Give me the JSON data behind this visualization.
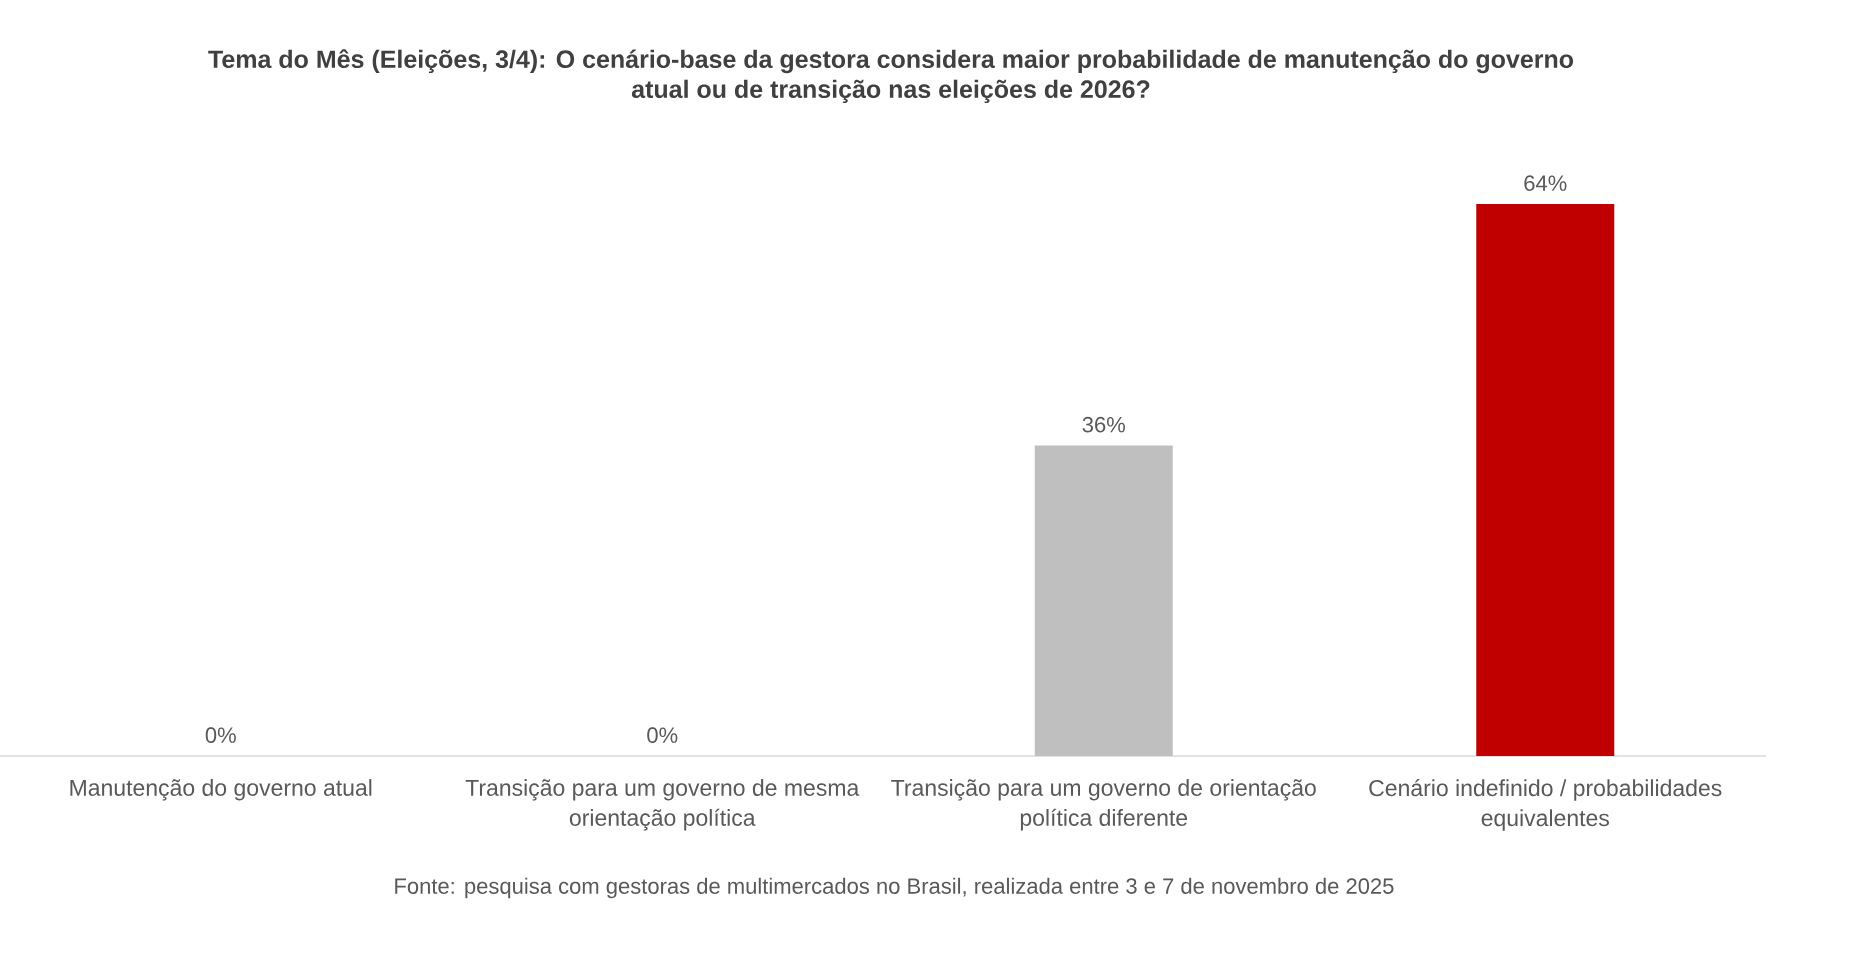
{
  "chart_data": {
    "type": "bar",
    "title": "Tema do Mês (Eleições, 3/4): O cenário-base da gestora considera maior probabilidade de manutenção do governo atual ou de transição nas eleições de 2026?",
    "categories": [
      "Manutenção do governo atual",
      "Transição para um governo de mesma orientação política",
      "Transição para um governo de orientação política diferente",
      "Cenário indefinido / probabilidades equivalentes"
    ],
    "values": [
      0,
      0,
      36,
      64
    ],
    "colors": [
      "#bfbfbf",
      "#bfbfbf",
      "#bfbfbf",
      "#c00000"
    ],
    "value_labels": [
      "0%",
      "0%",
      "36%",
      "64%"
    ],
    "tick_labels": "x",
    "annotations": [
      "Fonte: pesquisa com gestoras de multimercados no Brasil, realizada entre 3 e 7 de novembro de 2025"
    ]
  }
}
